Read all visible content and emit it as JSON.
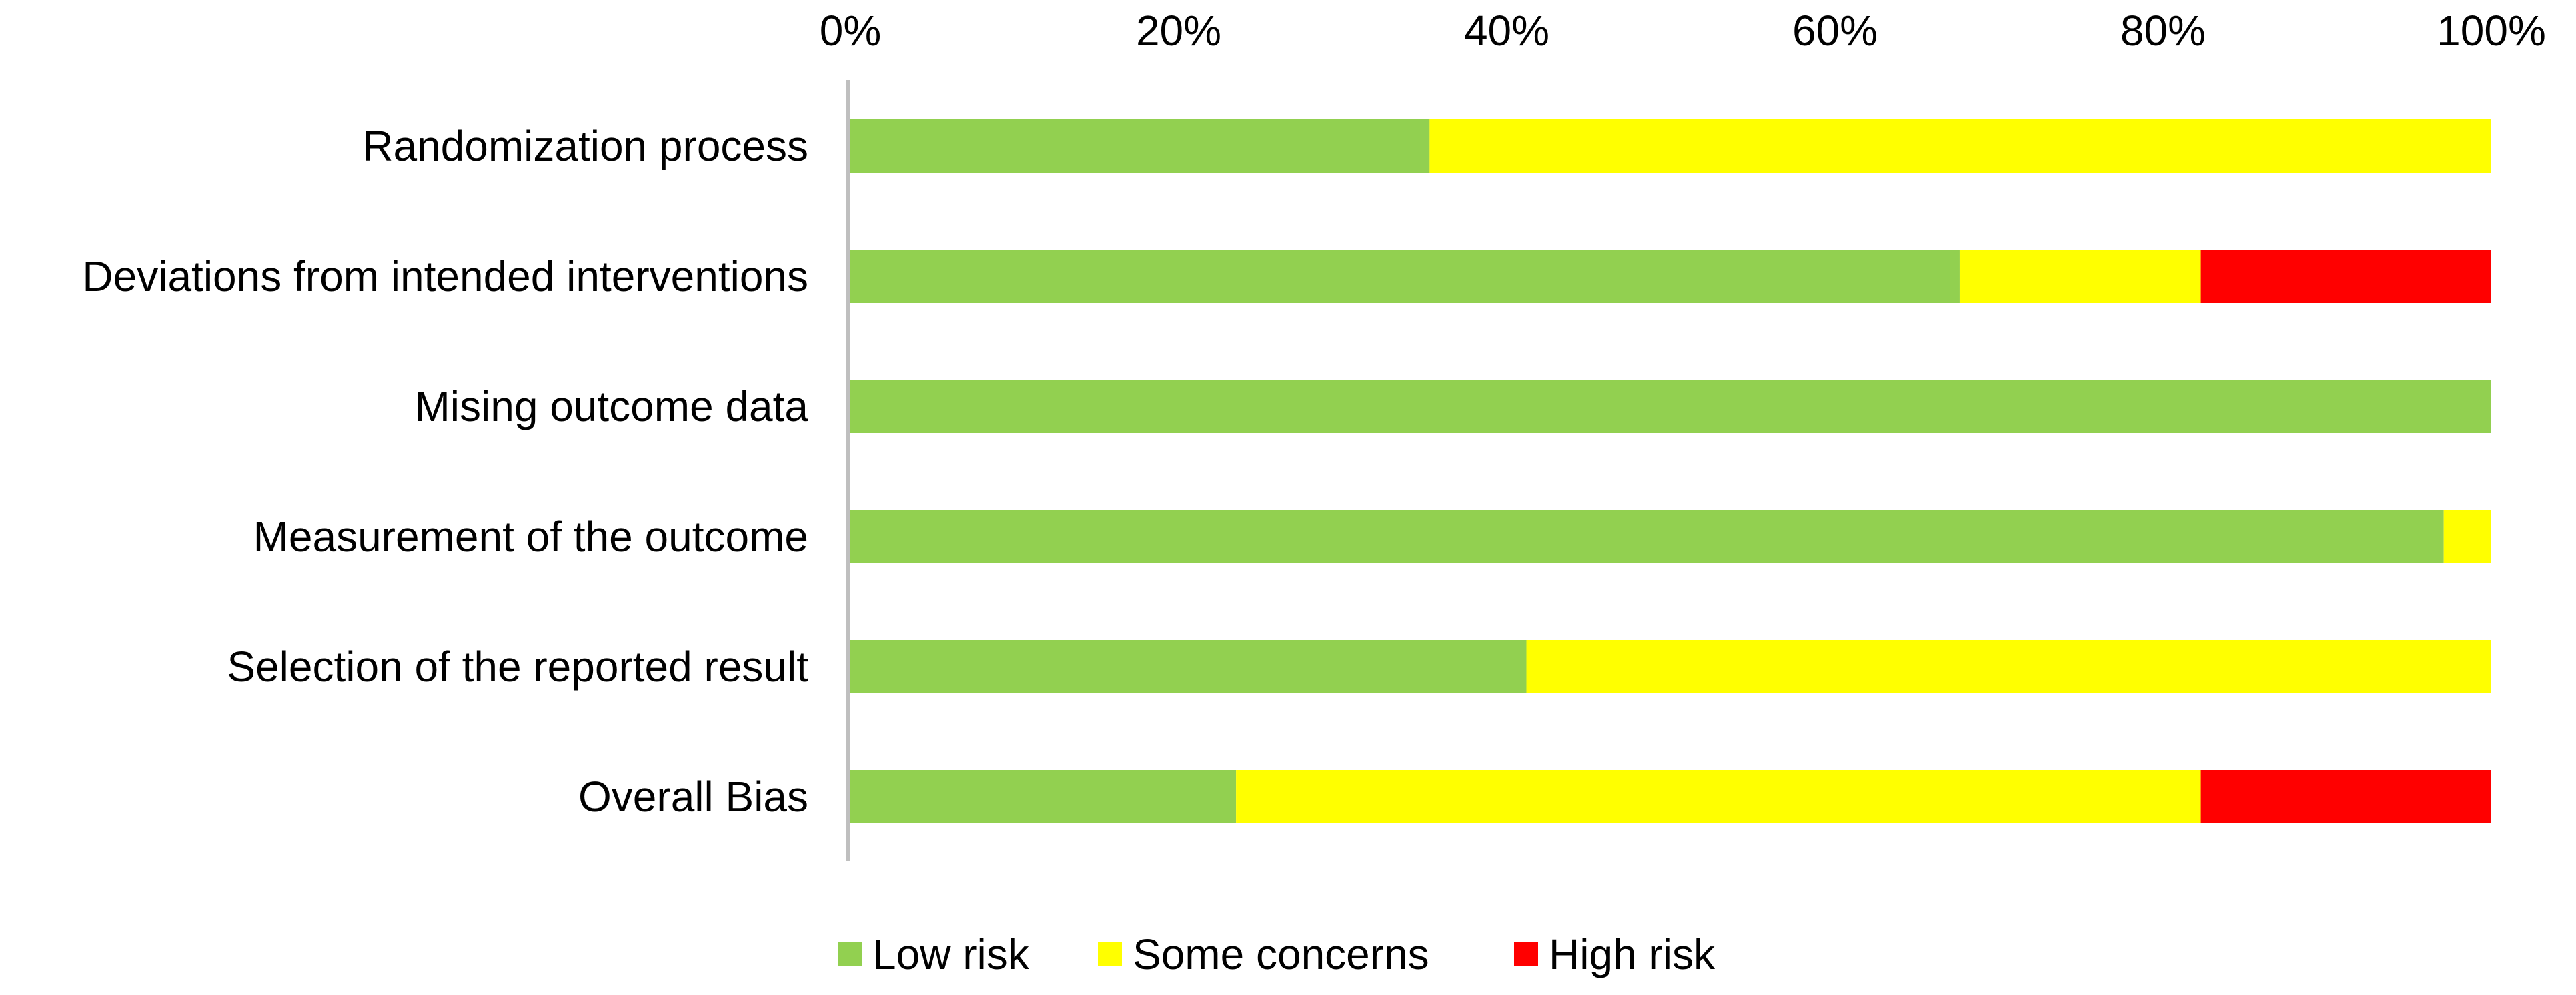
{
  "chart_data": {
    "type": "bar",
    "orientation": "horizontal",
    "stacked": true,
    "title": "",
    "xlabel": "",
    "ylabel": "",
    "xlim": [
      0,
      100
    ],
    "x_ticks": [
      "0%",
      "20%",
      "40%",
      "60%",
      "80%",
      "100%"
    ],
    "x_tick_values": [
      0,
      20,
      40,
      60,
      80,
      100
    ],
    "x_axis_position": "top",
    "grid": false,
    "legend_position": "bottom",
    "categories": [
      "Randomization process",
      "Deviations from intended interventions",
      "Mising outcome data",
      "Measurement of the outcome",
      "Selection of the reported result",
      "Overall Bias"
    ],
    "series": [
      {
        "name": "Low risk",
        "color": "#92d050",
        "values": [
          35.3,
          67.6,
          100,
          97.1,
          41.2,
          23.5
        ]
      },
      {
        "name": "Some concerns",
        "color": "#ffff00",
        "values": [
          64.7,
          14.7,
          0,
          2.9,
          58.8,
          58.8
        ]
      },
      {
        "name": "High risk",
        "color": "#ff0000",
        "values": [
          0,
          17.7,
          0,
          0,
          0,
          17.7
        ]
      }
    ]
  }
}
